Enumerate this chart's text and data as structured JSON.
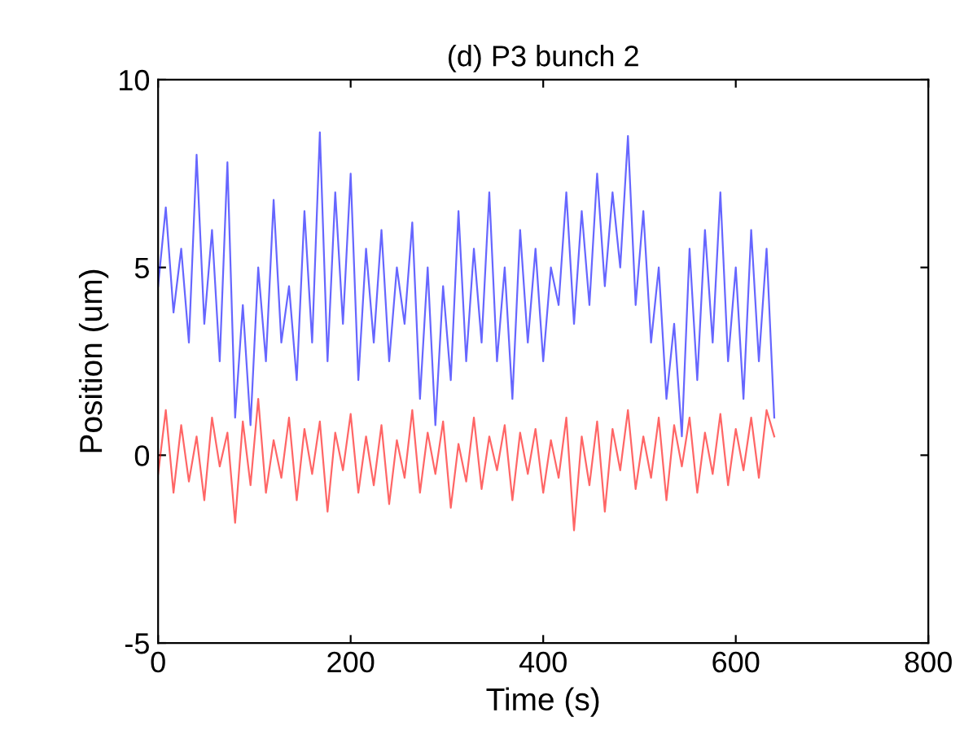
{
  "chart_data": {
    "type": "line",
    "title": "(d) P3 bunch 2",
    "xlabel": "Time (s)",
    "ylabel": "Position (um)",
    "x": [
      0,
      8,
      16,
      24,
      32,
      40,
      48,
      56,
      64,
      72,
      80,
      88,
      96,
      104,
      112,
      120,
      128,
      136,
      144,
      152,
      160,
      168,
      176,
      184,
      192,
      200,
      208,
      216,
      224,
      232,
      240,
      248,
      256,
      264,
      272,
      280,
      288,
      296,
      304,
      312,
      320,
      328,
      336,
      344,
      352,
      360,
      368,
      376,
      384,
      392,
      400,
      408,
      416,
      424,
      432,
      440,
      448,
      456,
      464,
      472,
      480,
      488,
      496,
      504,
      512,
      520,
      528,
      536,
      544,
      552,
      560,
      568,
      576,
      584,
      592,
      600,
      608,
      616,
      624,
      632,
      640
    ],
    "series": [
      {
        "color": "#0000ff",
        "values": [
          4.5,
          6.6,
          3.8,
          5.5,
          3.0,
          8.0,
          3.5,
          6.0,
          2.5,
          7.8,
          1.0,
          4.0,
          0.8,
          5.0,
          2.5,
          6.8,
          3.0,
          4.5,
          2.0,
          6.5,
          3.0,
          8.6,
          2.5,
          7.0,
          3.5,
          7.5,
          2.0,
          5.5,
          3.0,
          6.0,
          2.5,
          5.0,
          3.5,
          6.2,
          1.5,
          5.0,
          0.8,
          4.5,
          2.0,
          6.5,
          2.5,
          5.5,
          3.0,
          7.0,
          2.5,
          5.0,
          1.5,
          6.0,
          3.0,
          5.5,
          2.5,
          5.0,
          4.0,
          7.0,
          3.5,
          6.5,
          4.0,
          7.5,
          4.5,
          7.0,
          5.0,
          8.5,
          4.0,
          6.5,
          3.0,
          5.0,
          1.5,
          3.5,
          0.5,
          5.5,
          2.0,
          6.0,
          3.0,
          7.0,
          2.5,
          5.0,
          1.5,
          6.0,
          2.5,
          5.5,
          1.0
        ]
      },
      {
        "color": "#ff0000",
        "values": [
          -0.5,
          1.2,
          -1.0,
          0.8,
          -0.7,
          0.5,
          -1.2,
          1.0,
          -0.3,
          0.6,
          -1.8,
          0.9,
          -0.8,
          1.5,
          -1.0,
          0.4,
          -0.6,
          1.0,
          -1.2,
          0.7,
          -0.5,
          0.9,
          -1.5,
          0.6,
          -0.4,
          1.1,
          -1.0,
          0.5,
          -0.8,
          0.8,
          -1.3,
          0.4,
          -0.6,
          1.2,
          -1.0,
          0.6,
          -0.5,
          0.9,
          -1.4,
          0.3,
          -0.7,
          1.0,
          -0.9,
          0.5,
          -0.4,
          0.8,
          -1.2,
          0.6,
          -0.5,
          0.7,
          -1.0,
          0.4,
          -0.6,
          1.0,
          -2.0,
          0.5,
          -0.8,
          0.9,
          -1.5,
          0.7,
          -0.4,
          1.2,
          -0.9,
          0.5,
          -0.6,
          1.0,
          -1.2,
          0.8,
          -0.3,
          1.0,
          -1.0,
          0.6,
          -0.5,
          1.1,
          -0.8,
          0.7,
          -0.4,
          1.0,
          -0.6,
          1.2,
          0.5
        ]
      }
    ],
    "xlim": [
      0,
      800
    ],
    "xticks": [
      0,
      200,
      400,
      600,
      800
    ],
    "ylim": [
      -5,
      10
    ],
    "yticks": [
      -5,
      0,
      5,
      10
    ],
    "grid": false,
    "legend": false
  }
}
